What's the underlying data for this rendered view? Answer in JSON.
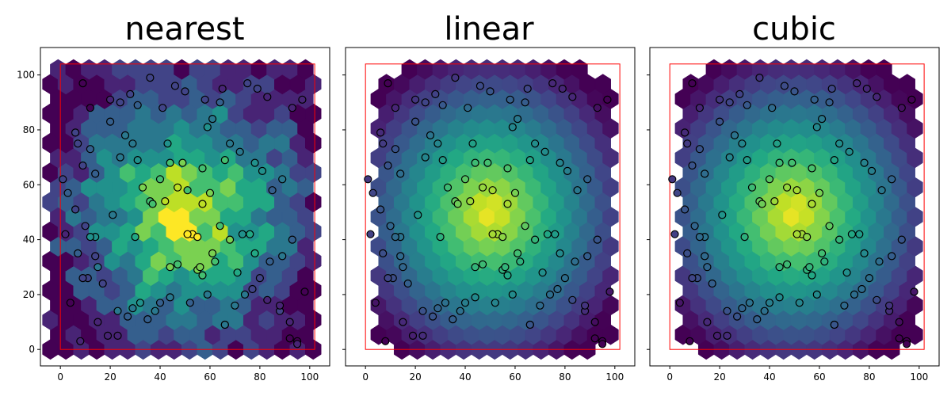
{
  "chart_data": [
    {
      "type": "scatter",
      "subtype": "hexbin-heatmap",
      "title": "nearest",
      "xlabel": "",
      "ylabel": "",
      "xlim": [
        -8,
        108
      ],
      "ylim": [
        -6,
        110
      ],
      "x_ticks": [
        "0",
        "20",
        "40",
        "60",
        "80",
        "100"
      ],
      "y_ticks": [
        "0",
        "20",
        "40",
        "60",
        "80",
        "100"
      ],
      "y_tick_labels_shown": true,
      "colormap": "viridis",
      "field": "nearest",
      "boundary_rect": {
        "x0": 0,
        "x1": 102,
        "y0": 0,
        "y1": 104,
        "color": "#ff0000"
      },
      "grid": false,
      "legend": "none"
    },
    {
      "type": "scatter",
      "subtype": "hexbin-heatmap",
      "title": "linear",
      "xlabel": "",
      "ylabel": "",
      "xlim": [
        -8,
        108
      ],
      "ylim": [
        -6,
        110
      ],
      "x_ticks": [
        "0",
        "20",
        "40",
        "60",
        "80",
        "100"
      ],
      "y_ticks": [
        "0",
        "20",
        "40",
        "60",
        "80",
        "100"
      ],
      "y_tick_labels_shown": false,
      "colormap": "viridis",
      "field": "smooth",
      "boundary_rect": {
        "x0": 0,
        "x1": 102,
        "y0": 0,
        "y1": 104,
        "color": "#ff0000"
      },
      "grid": false,
      "legend": "none"
    },
    {
      "type": "scatter",
      "subtype": "hexbin-heatmap",
      "title": "cubic",
      "xlabel": "",
      "ylabel": "",
      "xlim": [
        -8,
        108
      ],
      "ylim": [
        -6,
        110
      ],
      "x_ticks": [
        "0",
        "20",
        "40",
        "60",
        "80",
        "100"
      ],
      "y_ticks": [
        "0",
        "20",
        "40",
        "60",
        "80",
        "100"
      ],
      "y_tick_labels_shown": false,
      "colormap": "viridis",
      "field": "smooth",
      "boundary_rect": {
        "x0": 0,
        "x1": 102,
        "y0": 0,
        "y1": 104,
        "color": "#ff0000"
      },
      "grid": false,
      "legend": "none"
    }
  ],
  "sample_points": {
    "x": [
      9,
      12,
      20,
      24,
      28,
      31,
      36,
      41,
      46,
      50,
      58,
      65,
      75,
      79,
      83,
      93,
      97,
      6,
      7,
      9,
      12,
      14,
      20,
      24,
      26,
      29,
      31,
      33,
      40,
      43,
      49,
      51,
      57,
      59,
      61,
      64,
      66,
      68,
      72,
      78,
      81,
      85,
      89,
      1,
      3,
      6,
      10,
      14,
      21,
      30,
      36,
      37,
      42,
      44,
      47,
      53,
      55,
      57,
      60,
      64,
      68,
      73,
      76,
      78,
      89,
      93,
      4,
      8,
      11,
      14,
      15,
      17,
      23,
      29,
      38,
      44,
      47,
      52,
      55,
      57,
      59,
      62,
      66,
      71,
      77,
      83,
      88,
      92,
      95,
      98,
      2,
      7,
      9,
      12,
      15,
      19,
      23,
      27,
      32,
      35,
      40,
      44,
      51,
      56,
      61,
      66,
      70,
      74,
      80,
      84,
      88,
      92,
      95
    ],
    "y": [
      97,
      88,
      91,
      90,
      93,
      89,
      99,
      88,
      96,
      94,
      91,
      95,
      97,
      95,
      92,
      88,
      91,
      79,
      75,
      67,
      73,
      64,
      83,
      70,
      78,
      75,
      69,
      59,
      62,
      75,
      68,
      58,
      66,
      81,
      84,
      90,
      69,
      75,
      72,
      68,
      65,
      58,
      62,
      62,
      57,
      51,
      45,
      41,
      49,
      41,
      54,
      53,
      54,
      68,
      59,
      42,
      41,
      53,
      57,
      45,
      40,
      42,
      42,
      35,
      34,
      40,
      17,
      3,
      26,
      34,
      30,
      24,
      14,
      15,
      14,
      19,
      31,
      17,
      29,
      27,
      20,
      32,
      9,
      28,
      22,
      18,
      14,
      10,
      3,
      21,
      42,
      35,
      26,
      41,
      10,
      5,
      5,
      12,
      17,
      11,
      17,
      30,
      42,
      30,
      35,
      9,
      16,
      20,
      26,
      32,
      16,
      4,
      2
    ]
  }
}
